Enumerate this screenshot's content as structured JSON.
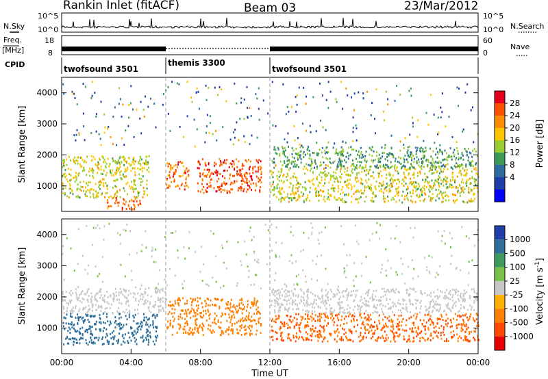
{
  "header": {
    "station": "Rankin Inlet (fitACF)",
    "beam": "Beam 03",
    "date": "23/Mar/2012"
  },
  "strip_labels": {
    "nsky": "N.Sky",
    "nsky_ticks": [
      "10^5",
      "10^0"
    ],
    "nsearch": "N.Search",
    "nsearch_ticks": [
      "10^5",
      "10^0"
    ],
    "freq_line1": "Freq.",
    "freq_line2": "[MHz]",
    "freq_ticks": [
      "18",
      "8"
    ],
    "nave": "Nave",
    "nave_ticks": [
      "60",
      "0"
    ],
    "cpid": "CPID",
    "cpid_segments": [
      {
        "name": "twofsound 3501",
        "start_hour": 0,
        "end_hour": 6.0
      },
      {
        "name": "themis 3300",
        "start_hour": 6.0,
        "end_hour": 12.0
      },
      {
        "name": "twofsound 3501",
        "start_hour": 12.0,
        "end_hour": 24.0
      }
    ]
  },
  "power_colorbar": {
    "label": "Power [dB]",
    "ticks": [
      "28",
      "24",
      "20",
      "16",
      "12",
      "8",
      "4"
    ],
    "colors": [
      "#e3001b",
      "#ff5200",
      "#ff8c00",
      "#ffc400",
      "#9acd32",
      "#3c9a55",
      "#2e6b9e",
      "#1f3fa8",
      "#0000ff"
    ]
  },
  "velocity_colorbar": {
    "label": "Velocity [m s",
    "label_sup": "-1",
    "label_end": "]",
    "ticks": [
      "1000",
      "500",
      "100",
      "25",
      "-25",
      "-100",
      "-500",
      "-1000"
    ],
    "colors": [
      "#1e3fa8",
      "#2f6f9a",
      "#3e9a5e",
      "#77c24a",
      "#c8c8c8",
      "#ffb000",
      "#ff7f00",
      "#ff4a00",
      "#e60000"
    ]
  },
  "chart_data": {
    "type": "heatmap",
    "title": "Rankin Inlet (fitACF)  Beam 03  23/Mar/2012",
    "xlabel": "Time UT",
    "ylabel": "Slant Range [km]",
    "xticks": [
      "00:00",
      "04:00",
      "08:00",
      "12:00",
      "16:00",
      "20:00",
      "00:00"
    ],
    "yticks": [
      "1000",
      "2000",
      "3000",
      "4000"
    ],
    "xlim_hours": [
      0,
      24
    ],
    "ylim_km": [
      180,
      4500
    ],
    "panels": [
      {
        "name": "Power [dB]",
        "scatter_bands": [
          {
            "t0": 0.0,
            "t1": 5.0,
            "r0": 650,
            "r1": 2000,
            "value": 16
          },
          {
            "t0": 2.6,
            "t1": 4.6,
            "r0": 250,
            "r1": 650,
            "value": 24
          },
          {
            "t0": 6.0,
            "t1": 7.3,
            "r0": 900,
            "r1": 1850,
            "value": 24
          },
          {
            "t0": 7.8,
            "t1": 11.5,
            "r0": 800,
            "r1": 1900,
            "value": 26
          },
          {
            "t0": 12.0,
            "t1": 24.0,
            "r0": 500,
            "r1": 1700,
            "value": 16
          },
          {
            "t0": 12.0,
            "t1": 24.0,
            "r0": 1600,
            "r1": 2300,
            "value": 10
          }
        ]
      },
      {
        "name": "Velocity [m s-1]",
        "scatter_bands": [
          {
            "t0": 0.0,
            "t1": 6.0,
            "r0": 1500,
            "r1": 2300,
            "value": 0
          },
          {
            "t0": 0.0,
            "t1": 5.5,
            "r0": 500,
            "r1": 1500,
            "value": 300
          },
          {
            "t0": 6.0,
            "t1": 11.5,
            "r0": 800,
            "r1": 2000,
            "value": -200
          },
          {
            "t0": 12.0,
            "t1": 24.0,
            "r0": 600,
            "r1": 1500,
            "value": -250
          },
          {
            "t0": 12.0,
            "t1": 24.0,
            "r0": 1500,
            "r1": 2300,
            "value": 0
          }
        ]
      }
    ],
    "grid": false
  }
}
